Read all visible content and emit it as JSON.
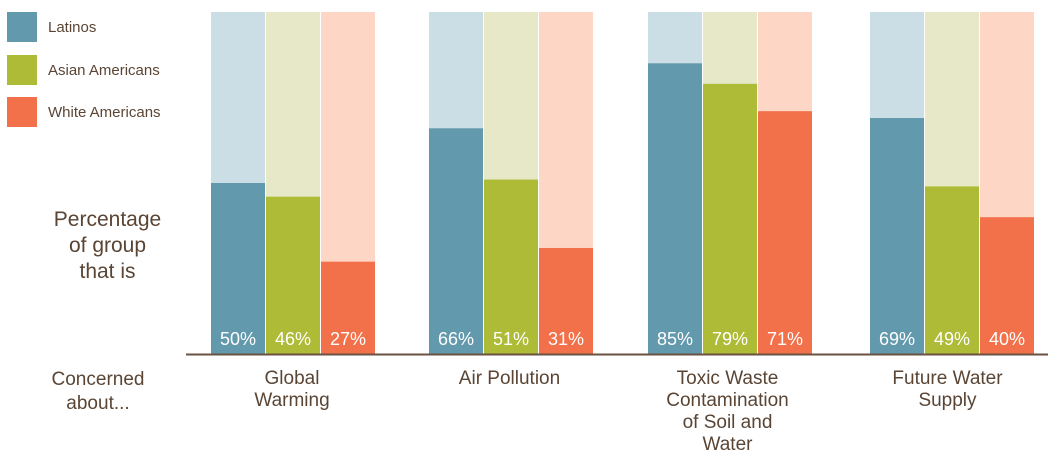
{
  "chart_data": {
    "type": "bar",
    "categories": [
      "Global\nWarming",
      "Air Pollution",
      "Toxic Waste\nContamination\nof Soil and\nWater",
      "Future Water\nSupply"
    ],
    "series": [
      {
        "name": "Latinos",
        "values": [
          50,
          66,
          85,
          69
        ],
        "color": "#6399ad",
        "bg_color": "#ccdee5"
      },
      {
        "name": "Asian Americans",
        "values": [
          46,
          51,
          79,
          49
        ],
        "color": "#aebb37",
        "bg_color": "#e6e8c7"
      },
      {
        "name": "White Americans",
        "values": [
          27,
          31,
          71,
          40
        ],
        "color": "#f2714a",
        "bg_color": "#fdd6c6"
      }
    ],
    "value_labels": [
      [
        "50%",
        "66%",
        "85%",
        "69%"
      ],
      [
        "46%",
        "51%",
        "79%",
        "49%"
      ],
      [
        "27%",
        "31%",
        "71%",
        "40%"
      ]
    ],
    "ylim": [
      0,
      100
    ],
    "ylabel": "Percentage\nof group\nthat is",
    "xlabel": "Concerned\nabout...",
    "legend_position": "top-left",
    "grid": false
  },
  "colors": {
    "text": "#5a4535",
    "axis": "#6b5240",
    "bar_label": "#ffffff"
  }
}
